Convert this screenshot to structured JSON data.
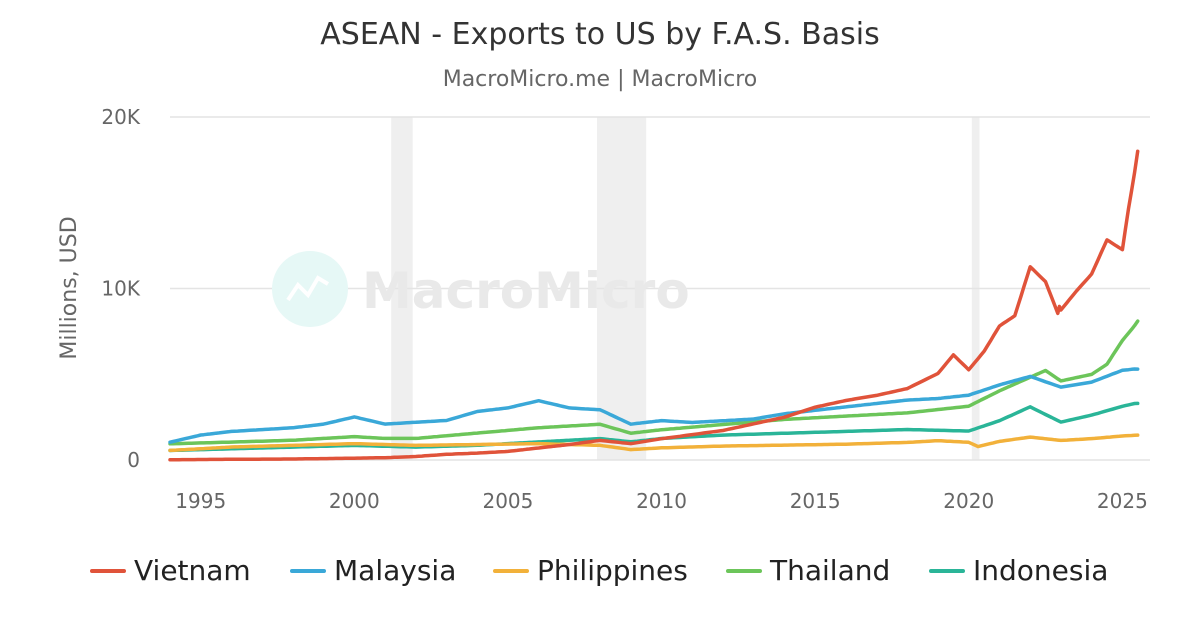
{
  "chart_data": {
    "type": "line",
    "title": "ASEAN - Exports to US by F.A.S. Basis",
    "subtitle": "MacroMicro.me | MacroMicro",
    "watermark": "MacroMicro",
    "ylabel": "Millions, USD",
    "xlabel": "",
    "ylim": [
      0,
      20000
    ],
    "xlim": [
      1994.0,
      2025.9
    ],
    "y_ticks": [
      0,
      10000,
      20000
    ],
    "y_tick_labels": [
      "0",
      "10K",
      "20K"
    ],
    "x_ticks": [
      1995,
      2000,
      2005,
      2010,
      2015,
      2020,
      2025
    ],
    "x_tick_labels": [
      "1995",
      "2000",
      "2005",
      "2010",
      "2015",
      "2020",
      "2025"
    ],
    "grid": true,
    "legend_position": "bottom",
    "recession_bands": [
      [
        2001.2,
        2001.9
      ],
      [
        2007.9,
        2009.5
      ],
      [
        2020.1,
        2020.35
      ]
    ],
    "series": [
      {
        "name": "Vietnam",
        "color": "#e0533a",
        "x": [
          1994.0,
          1996,
          1998,
          2000,
          2001,
          2002,
          2003,
          2004,
          2005,
          2006,
          2007,
          2008,
          2009,
          2010,
          2011,
          2012,
          2013,
          2014,
          2015,
          2016,
          2017,
          2018,
          2019,
          2019.5,
          2020,
          2020.5,
          2021,
          2021.5,
          2022,
          2022.5,
          2022.9,
          2023,
          2023.5,
          2024,
          2024.5,
          2025,
          2025.2,
          2025.5
        ],
        "y": [
          50,
          80,
          100,
          150,
          180,
          250,
          380,
          450,
          550,
          750,
          950,
          1200,
          1000,
          1300,
          1550,
          1800,
          2200,
          2600,
          3200,
          3600,
          3900,
          4300,
          5200,
          6300,
          5400,
          6500,
          8000,
          8600,
          11500,
          10600,
          8700,
          8900,
          10000,
          11000,
          13000,
          12400,
          14800,
          18000
        ]
      },
      {
        "name": "Malaysia",
        "color": "#3aa8d8",
        "x": [
          1994.0,
          1995,
          1996,
          1997,
          1998,
          1999,
          2000,
          2001,
          2002,
          2003,
          2004,
          2005,
          2006,
          2007,
          2008,
          2009,
          2010,
          2011,
          2012,
          2013,
          2014,
          2015,
          2016,
          2017,
          2018,
          2019,
          2020,
          2021,
          2022,
          2023,
          2024,
          2025,
          2025.5
        ],
        "y": [
          1000,
          1400,
          1600,
          1700,
          1800,
          2000,
          2400,
          2000,
          2100,
          2200,
          2700,
          2900,
          3300,
          2900,
          2800,
          2000,
          2200,
          2100,
          2200,
          2300,
          2600,
          2800,
          3000,
          3200,
          3400,
          3500,
          3700,
          4300,
          4800,
          4200,
          4500,
          5200,
          5300
        ]
      },
      {
        "name": "Philippines",
        "color": "#f2b13a",
        "x": [
          1994.0,
          1996,
          1998,
          2000,
          2002,
          2004,
          2006,
          2008,
          2009,
          2010,
          2012,
          2014,
          2016,
          2018,
          2019,
          2020,
          2020.3,
          2021,
          2022,
          2023,
          2024,
          2025,
          2025.5
        ],
        "y": [
          600,
          800,
          900,
          1000,
          900,
          950,
          1000,
          900,
          650,
          750,
          850,
          900,
          950,
          1050,
          1150,
          1050,
          800,
          1100,
          1350,
          1150,
          1250,
          1400,
          1450
        ]
      },
      {
        "name": "Thailand",
        "color": "#6cc55a",
        "x": [
          1994.0,
          1996,
          1998,
          2000,
          2001,
          2002,
          2004,
          2006,
          2008,
          2009,
          2010,
          2012,
          2014,
          2016,
          2018,
          2019,
          2020,
          2021,
          2022,
          2022.5,
          2023,
          2024,
          2024.5,
          2025,
          2025.5
        ],
        "y": [
          900,
          1000,
          1100,
          1300,
          1200,
          1200,
          1500,
          1800,
          2000,
          1500,
          1700,
          2000,
          2300,
          2500,
          2700,
          2900,
          3100,
          4000,
          4800,
          5200,
          4600,
          5000,
          5600,
          7000,
          8100
        ]
      },
      {
        "name": "Indonesia",
        "color": "#2ab598",
        "x": [
          1994.0,
          1996,
          1998,
          2000,
          2002,
          2004,
          2006,
          2008,
          2009,
          2010,
          2012,
          2014,
          2016,
          2018,
          2020,
          2021,
          2022,
          2023,
          2024,
          2025,
          2025.5
        ],
        "y": [
          600,
          700,
          800,
          900,
          800,
          900,
          1100,
          1300,
          1100,
          1300,
          1500,
          1600,
          1700,
          1800,
          1700,
          2300,
          3100,
          2200,
          2600,
          3100,
          3300
        ]
      }
    ]
  }
}
